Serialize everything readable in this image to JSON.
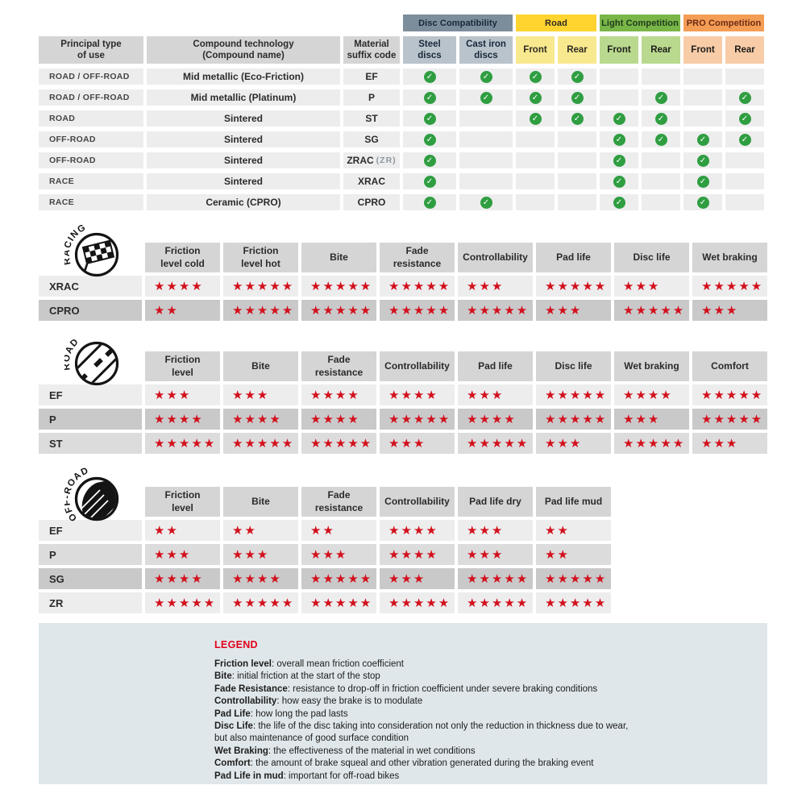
{
  "colors": {
    "disc_header": "#7c8d9c",
    "disc_sub": "#b9c3cb",
    "road_header": "#ffd42e",
    "road_sub": "#f9e98e",
    "light_comp_header": "#7ab548",
    "light_comp_sub": "#b9d98f",
    "pro_comp_header": "#f49d55",
    "pro_comp_sub": "#f8cca7",
    "grey_header_cell": "#d5d5d6",
    "row_light": "#ededee",
    "row_mid": "#dcdcdd",
    "row_dark": "#c9c9ca",
    "check_green": "#2f9e41",
    "star_red": "#d2111c",
    "legend_bg": "#dfe7eb",
    "legend_red": "#e2001a"
  },
  "chart_data": [
    {
      "type": "table",
      "id": "compat",
      "group_headers": [
        "Disc Compatibility",
        "Road",
        "Light Competition",
        "PRO Competition"
      ],
      "left_headers": [
        "Principal type\nof use",
        "Compound technology\n(Compound name)",
        "Material\nsuffix code"
      ],
      "sub_headers": [
        "Steel\ndiscs",
        "Cast iron\ndiscs",
        "Front",
        "Rear",
        "Front",
        "Rear",
        "Front",
        "Rear"
      ],
      "rows": [
        {
          "use": "ROAD / OFF-ROAD",
          "compound": "Mid metallic (Eco-Friction)",
          "code": "EF",
          "code_note": "",
          "checks": [
            1,
            1,
            1,
            1,
            0,
            0,
            0,
            0
          ]
        },
        {
          "use": "ROAD / OFF-ROAD",
          "compound": "Mid metallic (Platinum)",
          "code": "P",
          "code_note": "",
          "checks": [
            1,
            1,
            1,
            1,
            0,
            1,
            0,
            1
          ]
        },
        {
          "use": "ROAD",
          "compound": "Sintered",
          "code": "ST",
          "code_note": "",
          "checks": [
            1,
            0,
            1,
            1,
            1,
            1,
            0,
            1
          ]
        },
        {
          "use": "OFF-ROAD",
          "compound": "Sintered",
          "code": "SG",
          "code_note": "",
          "checks": [
            1,
            0,
            0,
            0,
            1,
            1,
            1,
            1
          ]
        },
        {
          "use": "OFF-ROAD",
          "compound": "Sintered",
          "code": "ZRAC",
          "code_note": "(ZR)",
          "checks": [
            1,
            0,
            0,
            0,
            1,
            0,
            1,
            0
          ]
        },
        {
          "use": "RACE",
          "compound": "Sintered",
          "code": "XRAC",
          "code_note": "",
          "checks": [
            1,
            0,
            0,
            0,
            1,
            0,
            1,
            0
          ]
        },
        {
          "use": "RACE",
          "compound": "Ceramic (CPRO)",
          "code": "CPRO",
          "code_note": "",
          "checks": [
            1,
            1,
            0,
            0,
            1,
            0,
            1,
            0
          ]
        }
      ]
    },
    {
      "type": "table",
      "id": "racing",
      "badge": "RACING",
      "max_stars": 5,
      "columns": [
        "Friction\nlevel cold",
        "Friction\nlevel hot",
        "Bite",
        "Fade\nresistance",
        "Controllability",
        "Pad life",
        "Disc life",
        "Wet braking"
      ],
      "rows": [
        {
          "code": "XRAC",
          "shade": "light",
          "stars": [
            4,
            5,
            5,
            5,
            3,
            5,
            3,
            5
          ]
        },
        {
          "code": "CPRO",
          "shade": "dark",
          "stars": [
            2,
            5,
            5,
            5,
            5,
            3,
            5,
            3
          ]
        }
      ]
    },
    {
      "type": "table",
      "id": "road",
      "badge": "ROAD",
      "max_stars": 5,
      "columns": [
        "Friction\nlevel",
        "Bite",
        "Fade\nresistance",
        "Controllability",
        "Pad life",
        "Disc life",
        "Wet braking",
        "Comfort"
      ],
      "rows": [
        {
          "code": "EF",
          "shade": "light",
          "stars": [
            3,
            3,
            4,
            4,
            3,
            5,
            4,
            5
          ]
        },
        {
          "code": "P",
          "shade": "dark",
          "stars": [
            4,
            4,
            4,
            5,
            4,
            5,
            3,
            5
          ]
        },
        {
          "code": "ST",
          "shade": "mid",
          "stars": [
            5,
            5,
            5,
            3,
            5,
            3,
            5,
            3
          ]
        }
      ]
    },
    {
      "type": "table",
      "id": "offroad",
      "badge": "OFF-ROAD",
      "max_stars": 5,
      "columns": [
        "Friction\nlevel",
        "Bite",
        "Fade\nresistance",
        "Controllability",
        "Pad life dry",
        "Pad life mud"
      ],
      "rows": [
        {
          "code": "EF",
          "shade": "light",
          "stars": [
            2,
            2,
            2,
            4,
            3,
            2
          ]
        },
        {
          "code": "P",
          "shade": "mid",
          "stars": [
            3,
            3,
            3,
            4,
            3,
            2
          ]
        },
        {
          "code": "SG",
          "shade": "dark",
          "stars": [
            4,
            4,
            5,
            3,
            5,
            5
          ]
        },
        {
          "code": "ZR",
          "shade": "light",
          "stars": [
            5,
            5,
            5,
            5,
            5,
            5
          ]
        }
      ]
    }
  ],
  "legend": {
    "title": "LEGEND",
    "items": [
      {
        "term": "Friction level",
        "desc": "overall mean friction coefficient"
      },
      {
        "term": "Bite",
        "desc": "initial friction at the start of the stop"
      },
      {
        "term": "Fade Resistance",
        "desc": "resistance to drop-off in friction coefficient under severe braking conditions"
      },
      {
        "term": "Controllability",
        "desc": "how easy the brake is to modulate"
      },
      {
        "term": "Pad Life",
        "desc": "how long the pad lasts"
      },
      {
        "term": "Disc Life",
        "desc": "the life of the disc taking into consideration not only the reduction in thickness due to wear,"
      },
      {
        "term": "",
        "desc": "but also maintenance of good surface condition"
      },
      {
        "term": "Wet Braking",
        "desc": "the effectiveness of the material in wet conditions"
      },
      {
        "term": "Comfort",
        "desc": "the amount of brake squeal and other vibration generated during the braking event"
      },
      {
        "term": "Pad Life in mud",
        "desc": "important for off-road bikes"
      }
    ]
  }
}
